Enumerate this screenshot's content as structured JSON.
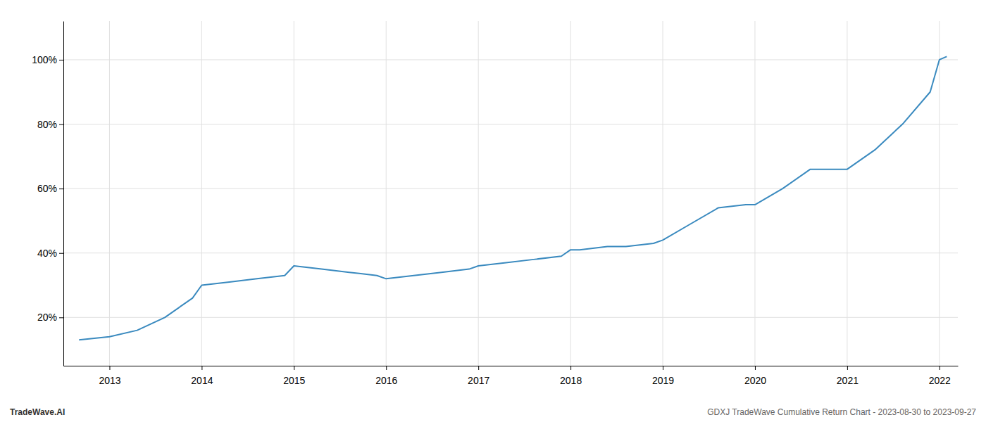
{
  "chart_data": {
    "type": "line",
    "x": [
      2012.67,
      2013.0,
      2013.3,
      2013.6,
      2013.9,
      2014.0,
      2014.3,
      2014.6,
      2014.9,
      2015.0,
      2015.3,
      2015.6,
      2015.9,
      2016.0,
      2016.3,
      2016.6,
      2016.9,
      2017.0,
      2017.3,
      2017.6,
      2017.9,
      2018.0,
      2018.1,
      2018.4,
      2018.6,
      2018.9,
      2019.0,
      2019.3,
      2019.6,
      2019.9,
      2020.0,
      2020.3,
      2020.6,
      2020.9,
      2021.0,
      2021.3,
      2021.6,
      2021.9,
      2022.0,
      2022.08
    ],
    "values": [
      13,
      14,
      16,
      20,
      26,
      30,
      31,
      32,
      33,
      36,
      35,
      34,
      33,
      32,
      33,
      34,
      35,
      36,
      37,
      38,
      39,
      41,
      41,
      42,
      42,
      43,
      44,
      49,
      54,
      55,
      55,
      60,
      66,
      66,
      66,
      72,
      80,
      90,
      100,
      101
    ],
    "color": "#3a8abf",
    "xlim": [
      2012.5,
      2022.2
    ],
    "ylim": [
      5,
      112
    ],
    "xticks": [
      2013,
      2014,
      2015,
      2016,
      2017,
      2018,
      2019,
      2020,
      2021,
      2022
    ],
    "yticks": [
      {
        "value": 20,
        "label": "20%"
      },
      {
        "value": 40,
        "label": "40%"
      },
      {
        "value": 60,
        "label": "60%"
      },
      {
        "value": 80,
        "label": "80%"
      },
      {
        "value": 100,
        "label": "100%"
      }
    ],
    "grid": true,
    "annotations": [
      "TradeWave.AI",
      "GDXJ TradeWave Cumulative Return Chart - 2023-08-30 to 2023-09-27"
    ]
  }
}
